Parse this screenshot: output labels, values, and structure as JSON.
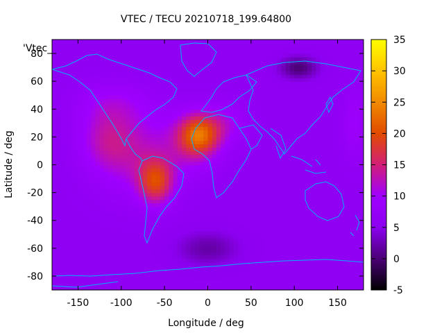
{
  "chart_data": {
    "type": "heatmap",
    "title": "VTEC / TECU 20210718_199.64800",
    "xlabel": "Longitude / deg",
    "ylabel": "Latitude / deg",
    "legend_key": "'Vtec_",
    "xlim": [
      -180,
      180
    ],
    "ylim": [
      -90,
      90
    ],
    "x_ticks": [
      -150,
      -100,
      -50,
      0,
      50,
      100,
      150
    ],
    "y_ticks": [
      -80,
      -60,
      -40,
      -20,
      0,
      20,
      40,
      60,
      80
    ],
    "colorbar": {
      "range": [
        -5,
        35
      ],
      "ticks": [
        -5,
        0,
        5,
        10,
        15,
        20,
        25,
        30,
        35
      ],
      "palette": [
        "#000000",
        "#4b0076",
        "#8c00f0",
        "#a000ff",
        "#d21e78",
        "#e14b00",
        "#f08a00",
        "#ffc300",
        "#ffff00"
      ]
    },
    "background_vtec": 6,
    "blobs": [
      {
        "lon": -10,
        "lat": 22,
        "sx": 22,
        "sy": 14,
        "amp": 13
      },
      {
        "lon": -60,
        "lat": -12,
        "sx": 20,
        "sy": 16,
        "amp": 12
      },
      {
        "lon": -90,
        "lat": 10,
        "sx": 45,
        "sy": 30,
        "amp": 6
      },
      {
        "lon": -20,
        "lat": 15,
        "sx": 35,
        "sy": 22,
        "amp": 5
      },
      {
        "lon": -120,
        "lat": 20,
        "sx": 30,
        "sy": 22,
        "amp": 4
      },
      {
        "lon": -110,
        "lat": 45,
        "sx": 45,
        "sy": 15,
        "amp": 3
      },
      {
        "lon": 20,
        "lat": 30,
        "sx": 25,
        "sy": 15,
        "amp": 4
      },
      {
        "lon": 105,
        "lat": 70,
        "sx": 22,
        "sy": 8,
        "amp": -6
      },
      {
        "lon": 0,
        "lat": -60,
        "sx": 35,
        "sy": 12,
        "amp": -4
      },
      {
        "lon": 170,
        "lat": 30,
        "sx": 15,
        "sy": 25,
        "amp": 3
      }
    ]
  }
}
